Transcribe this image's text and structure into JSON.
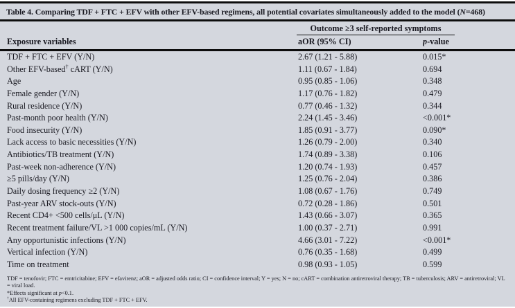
{
  "table": {
    "title_pre": "Table 4. Comparing TDF + FTC + EFV with other EFV-based regimens, all potential covariates simultaneously added to the model (",
    "title_n": "N",
    "title_post": "=468)",
    "group_header": "Outcome ≥3 self-reported symptoms",
    "columns": {
      "exposure": "Exposure variables",
      "aor": "aOR (95% CI)",
      "p_italic": "p",
      "p_post": "-value"
    },
    "rows": [
      {
        "label": "TDF + FTC + EFV (Y/N)",
        "aor": "2.67 (1.21 - 5.88)",
        "p": "0.015*"
      },
      {
        "label": "Other EFV-based",
        "sup": "†",
        "label2": " cART (Y/N)",
        "aor": "1.11 (0.67 - 1.84)",
        "p": "0.694"
      },
      {
        "label": "Age",
        "aor": "0.95 (0.85 - 1.06)",
        "p": "0.348"
      },
      {
        "label": "Female gender (Y/N)",
        "aor": "1.17 (0.76 - 1.82)",
        "p": "0.479"
      },
      {
        "label": "Rural residence (Y/N)",
        "aor": "0.77 (0.46 - 1.32)",
        "p": "0.344"
      },
      {
        "label": "Past-month poor health (Y/N)",
        "aor": "2.24 (1.45 - 3.46)",
        "p": "<0.001*"
      },
      {
        "label": "Food insecurity (Y/N)",
        "aor": "1.85 (0.91 - 3.77)",
        "p": "0.090*"
      },
      {
        "label": "Lack access to basic necessities (Y/N)",
        "aor": "1.26 (0.79 - 2.00)",
        "p": "0.340"
      },
      {
        "label": "Antibiotics/TB treatment (Y/N)",
        "aor": "1.74 (0.89 - 3.38)",
        "p": "0.106"
      },
      {
        "label": "Past-week non-adherence (Y/N)",
        "aor": "1.20 (0.74 - 1.93)",
        "p": "0.457"
      },
      {
        "label": "≥5 pills/day (Y/N)",
        "aor": "1.25 (0.76 - 2.04)",
        "p": "0.386"
      },
      {
        "label": "Daily dosing frequency ≥2 (Y/N)",
        "aor": "1.08 (0.67 - 1.76)",
        "p": "0.749"
      },
      {
        "label": "Past-year ARV stock-outs (Y/N)",
        "aor": "0.72 (0.28 - 1.86)",
        "p": "0.501"
      },
      {
        "label": "Recent CD4+ <500 cells/μL (Y/N)",
        "aor": "1.43 (0.66 - 3.07)",
        "p": "0.365"
      },
      {
        "label": "Recent treatment failure/VL >1 000 copies/mL (Y/N)",
        "aor": "1.00 (0.37 - 2.71)",
        "p": "0.991"
      },
      {
        "label": "Any opportunistic infections (Y/N)",
        "aor": "4.66 (3.01 - 7.22)",
        "p": "<0.001*"
      },
      {
        "label": "Vertical infection (Y/N)",
        "aor": "0.76 (0.35 - 1.68)",
        "p": "0.499"
      },
      {
        "label": "Time on treatment",
        "aor": "0.98 (0.93 - 1.05)",
        "p": "0.599"
      }
    ]
  },
  "footnotes": {
    "abbreviations": "TDF = tenofovir; FTC = emtricitabine; EFV = efavirenz; aOR = adjusted odds ratio; CI = confidence interval; Y = yes; N = no; cART = combination antiretroviral therapy; TB = tuberculosis; ARV = antiretroviral; VL = viral load.",
    "significance_pre": "*Effects significant at ",
    "significance_p": "p",
    "significance_post": "<0.1.",
    "dagger_symbol": "†",
    "dagger_text": "All EFV-containing regimens excluding TDF + FTC + EFV."
  },
  "colors": {
    "background": "#d4d7de",
    "rule": "#0d0d0d",
    "text": "#1a1a22"
  }
}
